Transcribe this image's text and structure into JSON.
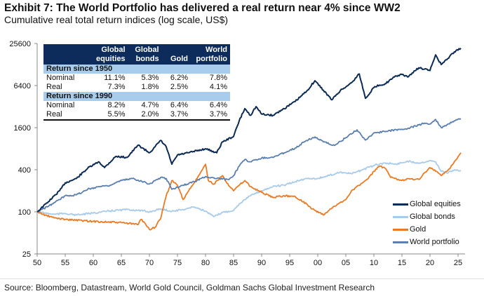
{
  "title": "Exhibit 7: The World Portfolio has delivered a real return near 4% since WW2",
  "subtitle": "Cumulative real total return indices (log scale, US$)",
  "source": "Source: Bloomberg, Datastream, World Gold Council, Goldman Sachs Global Investment Research",
  "table": {
    "headers": [
      "",
      "Global equities",
      "Global bonds",
      "Gold",
      "World portfolio"
    ],
    "sections": [
      {
        "label": "Return since 1950",
        "rows": [
          [
            "Nominal",
            "11.1%",
            "5.3%",
            "6.2%",
            "7.8%"
          ],
          [
            "Real",
            "7.3%",
            "1.8%",
            "2.5%",
            "4.1%"
          ]
        ]
      },
      {
        "label": "Return since 1990",
        "rows": [
          [
            "Nominal",
            "8.2%",
            "4.7%",
            "6.4%",
            "6.4%"
          ],
          [
            "Real",
            "5.5%",
            "2.0%",
            "3.7%",
            "3.7%"
          ]
        ]
      }
    ]
  },
  "chart_data": {
    "type": "line",
    "yscale": "log",
    "ylim": [
      25,
      25600
    ],
    "xlim": [
      1950,
      2026
    ],
    "yticks": [
      25,
      100,
      400,
      1600,
      6400,
      25600
    ],
    "ytick_labels": [
      "25",
      "100",
      "400",
      "1600",
      "6400",
      "25600"
    ],
    "xticks": [
      1950,
      1955,
      1960,
      1965,
      1970,
      1975,
      1980,
      1985,
      1990,
      1995,
      2000,
      2005,
      2010,
      2015,
      2020,
      2025
    ],
    "xtick_labels": [
      "50",
      "55",
      "60",
      "65",
      "70",
      "75",
      "80",
      "85",
      "90",
      "95",
      "00",
      "05",
      "10",
      "15",
      "20",
      "25"
    ],
    "grid": false,
    "legend": "bottom-right",
    "series": [
      {
        "name": "Global equities",
        "color": "#0b2a55",
        "points": [
          [
            1950,
            100
          ],
          [
            1952,
            140
          ],
          [
            1954,
            200
          ],
          [
            1955,
            260
          ],
          [
            1957,
            300
          ],
          [
            1959,
            420
          ],
          [
            1961,
            520
          ],
          [
            1962,
            430
          ],
          [
            1964,
            620
          ],
          [
            1966,
            600
          ],
          [
            1968,
            900
          ],
          [
            1970,
            700
          ],
          [
            1971,
            850
          ],
          [
            1972,
            1050
          ],
          [
            1973,
            850
          ],
          [
            1974,
            480
          ],
          [
            1975,
            650
          ],
          [
            1977,
            700
          ],
          [
            1980,
            800
          ],
          [
            1982,
            700
          ],
          [
            1983,
            1000
          ],
          [
            1985,
            1200
          ],
          [
            1986,
            2000
          ],
          [
            1987,
            3000
          ],
          [
            1988,
            2400
          ],
          [
            1989,
            3200
          ],
          [
            1990,
            2500
          ],
          [
            1992,
            2400
          ],
          [
            1994,
            3000
          ],
          [
            1996,
            3800
          ],
          [
            1998,
            5300
          ],
          [
            1999.5,
            7500
          ],
          [
            2001,
            5500
          ],
          [
            2002.5,
            4000
          ],
          [
            2004,
            5400
          ],
          [
            2006,
            7000
          ],
          [
            2007.4,
            9400
          ],
          [
            2008.5,
            4200
          ],
          [
            2010,
            6000
          ],
          [
            2011,
            6500
          ],
          [
            2012,
            6800
          ],
          [
            2014,
            8800
          ],
          [
            2015,
            9200
          ],
          [
            2016,
            8500
          ],
          [
            2018,
            11500
          ],
          [
            2019,
            11000
          ],
          [
            2020,
            10500
          ],
          [
            2021,
            17600
          ],
          [
            2022,
            12800
          ],
          [
            2023,
            15000
          ],
          [
            2024,
            18500
          ],
          [
            2025.5,
            22000
          ]
        ]
      },
      {
        "name": "Global bonds",
        "color": "#a9cbea",
        "points": [
          [
            1950,
            100
          ],
          [
            1953,
            92
          ],
          [
            1955,
            95
          ],
          [
            1957,
            90
          ],
          [
            1960,
            96
          ],
          [
            1963,
            103
          ],
          [
            1966,
            108
          ],
          [
            1968,
            105
          ],
          [
            1970,
            100
          ],
          [
            1972,
            110
          ],
          [
            1974,
            102
          ],
          [
            1976,
            108
          ],
          [
            1978,
            118
          ],
          [
            1980,
            102
          ],
          [
            1981.5,
            85
          ],
          [
            1983,
            98
          ],
          [
            1985,
            105
          ],
          [
            1986,
            130
          ],
          [
            1987,
            150
          ],
          [
            1988,
            170
          ],
          [
            1990,
            200
          ],
          [
            1992,
            230
          ],
          [
            1994,
            240
          ],
          [
            1996,
            270
          ],
          [
            1998,
            300
          ],
          [
            2000,
            300
          ],
          [
            2002,
            330
          ],
          [
            2004,
            370
          ],
          [
            2006,
            350
          ],
          [
            2008,
            400
          ],
          [
            2010,
            460
          ],
          [
            2012,
            500
          ],
          [
            2014,
            480
          ],
          [
            2016,
            530
          ],
          [
            2018,
            500
          ],
          [
            2020,
            540
          ],
          [
            2021,
            520
          ],
          [
            2022,
            380
          ],
          [
            2023,
            360
          ],
          [
            2024,
            390
          ],
          [
            2025.5,
            390
          ]
        ]
      },
      {
        "name": "Gold",
        "color": "#ec7a22",
        "points": [
          [
            1950,
            100
          ],
          [
            1951,
            92
          ],
          [
            1953,
            82
          ],
          [
            1955,
            78
          ],
          [
            1960,
            73
          ],
          [
            1965,
            70
          ],
          [
            1968,
            66
          ],
          [
            1968.5,
            78
          ],
          [
            1969,
            72
          ],
          [
            1970,
            56
          ],
          [
            1971,
            60
          ],
          [
            1972,
            80
          ],
          [
            1973,
            170
          ],
          [
            1974,
            280
          ],
          [
            1975,
            240
          ],
          [
            1976,
            150
          ],
          [
            1977,
            200
          ],
          [
            1978,
            260
          ],
          [
            1979,
            350
          ],
          [
            1980,
            480
          ],
          [
            1980.5,
            280
          ],
          [
            1981.5,
            250
          ],
          [
            1983,
            330
          ],
          [
            1984,
            250
          ],
          [
            1985,
            200
          ],
          [
            1986,
            240
          ],
          [
            1987,
            280
          ],
          [
            1988,
            230
          ],
          [
            1990,
            190
          ],
          [
            1992,
            160
          ],
          [
            1994,
            170
          ],
          [
            1996,
            165
          ],
          [
            1998,
            130
          ],
          [
            1999,
            110
          ],
          [
            2001,
            90
          ],
          [
            2002,
            105
          ],
          [
            2003,
            120
          ],
          [
            2005,
            150
          ],
          [
            2006,
            200
          ],
          [
            2008,
            260
          ],
          [
            2009,
            300
          ],
          [
            2010,
            380
          ],
          [
            2011,
            450
          ],
          [
            2012,
            420
          ],
          [
            2013,
            310
          ],
          [
            2015,
            280
          ],
          [
            2016,
            300
          ],
          [
            2018,
            290
          ],
          [
            2019,
            360
          ],
          [
            2020,
            430
          ],
          [
            2021,
            380
          ],
          [
            2022,
            330
          ],
          [
            2023,
            380
          ],
          [
            2024,
            470
          ],
          [
            2025.5,
            700
          ]
        ]
      },
      {
        "name": "World portfolio",
        "color": "#5b7fae",
        "points": [
          [
            1950,
            100
          ],
          [
            1952,
            120
          ],
          [
            1954,
            150
          ],
          [
            1955,
            170
          ],
          [
            1957,
            175
          ],
          [
            1959,
            210
          ],
          [
            1961,
            230
          ],
          [
            1963,
            240
          ],
          [
            1965,
            280
          ],
          [
            1967,
            300
          ],
          [
            1969,
            270
          ],
          [
            1970,
            250
          ],
          [
            1972,
            310
          ],
          [
            1973,
            300
          ],
          [
            1974,
            210
          ],
          [
            1976,
            240
          ],
          [
            1978,
            270
          ],
          [
            1980,
            320
          ],
          [
            1982,
            300
          ],
          [
            1984,
            290
          ],
          [
            1985,
            330
          ],
          [
            1986,
            450
          ],
          [
            1987,
            560
          ],
          [
            1988,
            520
          ],
          [
            1990,
            590
          ],
          [
            1992,
            600
          ],
          [
            1994,
            700
          ],
          [
            1996,
            820
          ],
          [
            1998,
            1050
          ],
          [
            1999.5,
            1180
          ],
          [
            2001,
            1000
          ],
          [
            2003,
            890
          ],
          [
            2005,
            1150
          ],
          [
            2007,
            1490
          ],
          [
            2008.5,
            1060
          ],
          [
            2010,
            1350
          ],
          [
            2012,
            1400
          ],
          [
            2014,
            1500
          ],
          [
            2016,
            1550
          ],
          [
            2018,
            1750
          ],
          [
            2019,
            1850
          ],
          [
            2020,
            1800
          ],
          [
            2021,
            2100
          ],
          [
            2022,
            1600
          ],
          [
            2023,
            1750
          ],
          [
            2024,
            1950
          ],
          [
            2025.5,
            2150
          ]
        ]
      }
    ]
  }
}
